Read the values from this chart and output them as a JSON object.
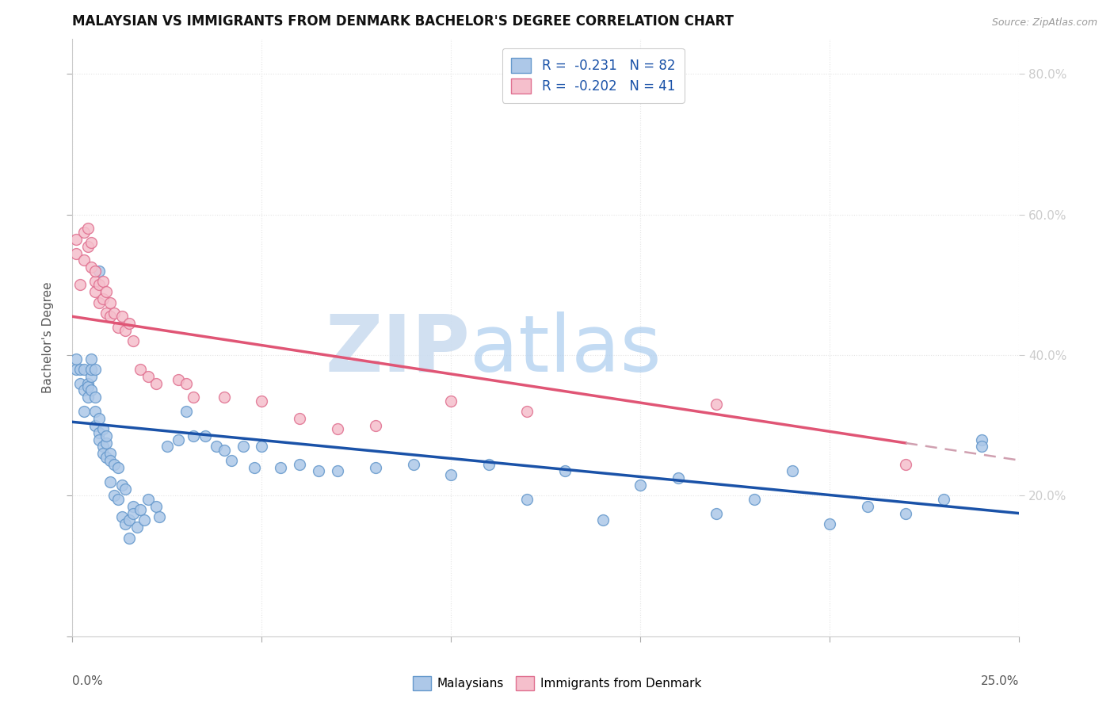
{
  "title": "MALAYSIAN VS IMMIGRANTS FROM DENMARK BACHELOR'S DEGREE CORRELATION CHART",
  "source": "Source: ZipAtlas.com",
  "ylabel": "Bachelor's Degree",
  "legend_blue_label": "Malaysians",
  "legend_pink_label": "Immigrants from Denmark",
  "legend_r_blue": "R =  -0.231",
  "legend_n_blue": "N = 82",
  "legend_r_pink": "R =  -0.202",
  "legend_n_pink": "N = 41",
  "blue_scatter_color": "#adc8e8",
  "blue_edge_color": "#6699cc",
  "pink_scatter_color": "#f5bfcc",
  "pink_edge_color": "#e07090",
  "blue_line_color": "#1a52a8",
  "pink_line_color": "#e05575",
  "pink_dash_color": "#d0a0b0",
  "background_color": "#ffffff",
  "grid_color": "#e5e5e5",
  "grid_style": "dotted",
  "right_tick_color": "#5599dd",
  "xlim": [
    0.0,
    0.25
  ],
  "ylim": [
    0.0,
    0.85
  ],
  "blue_x": [
    0.001,
    0.001,
    0.002,
    0.002,
    0.003,
    0.003,
    0.003,
    0.004,
    0.004,
    0.004,
    0.005,
    0.005,
    0.005,
    0.005,
    0.006,
    0.006,
    0.006,
    0.006,
    0.007,
    0.007,
    0.007,
    0.008,
    0.008,
    0.008,
    0.009,
    0.009,
    0.009,
    0.01,
    0.01,
    0.01,
    0.011,
    0.011,
    0.012,
    0.012,
    0.013,
    0.013,
    0.014,
    0.014,
    0.015,
    0.015,
    0.016,
    0.016,
    0.017,
    0.018,
    0.019,
    0.02,
    0.022,
    0.023,
    0.025,
    0.028,
    0.03,
    0.032,
    0.035,
    0.038,
    0.04,
    0.042,
    0.045,
    0.048,
    0.05,
    0.055,
    0.06,
    0.065,
    0.07,
    0.08,
    0.09,
    0.1,
    0.11,
    0.12,
    0.13,
    0.14,
    0.15,
    0.16,
    0.17,
    0.18,
    0.19,
    0.2,
    0.21,
    0.22,
    0.23,
    0.24,
    0.007,
    0.24
  ],
  "blue_y": [
    0.38,
    0.395,
    0.36,
    0.38,
    0.35,
    0.38,
    0.32,
    0.36,
    0.34,
    0.355,
    0.35,
    0.37,
    0.38,
    0.395,
    0.34,
    0.3,
    0.32,
    0.38,
    0.29,
    0.28,
    0.31,
    0.27,
    0.26,
    0.295,
    0.275,
    0.255,
    0.285,
    0.26,
    0.25,
    0.22,
    0.245,
    0.2,
    0.24,
    0.195,
    0.215,
    0.17,
    0.21,
    0.16,
    0.165,
    0.14,
    0.185,
    0.175,
    0.155,
    0.18,
    0.165,
    0.195,
    0.185,
    0.17,
    0.27,
    0.28,
    0.32,
    0.285,
    0.285,
    0.27,
    0.265,
    0.25,
    0.27,
    0.24,
    0.27,
    0.24,
    0.245,
    0.235,
    0.235,
    0.24,
    0.245,
    0.23,
    0.245,
    0.195,
    0.235,
    0.165,
    0.215,
    0.225,
    0.175,
    0.195,
    0.235,
    0.16,
    0.185,
    0.175,
    0.195,
    0.28,
    0.52,
    0.27
  ],
  "pink_x": [
    0.001,
    0.001,
    0.002,
    0.003,
    0.003,
    0.004,
    0.004,
    0.005,
    0.005,
    0.006,
    0.006,
    0.006,
    0.007,
    0.007,
    0.008,
    0.008,
    0.009,
    0.009,
    0.01,
    0.01,
    0.011,
    0.012,
    0.013,
    0.014,
    0.015,
    0.016,
    0.018,
    0.02,
    0.022,
    0.028,
    0.032,
    0.04,
    0.05,
    0.06,
    0.07,
    0.08,
    0.03,
    0.1,
    0.12,
    0.17,
    0.22
  ],
  "pink_y": [
    0.565,
    0.545,
    0.5,
    0.575,
    0.535,
    0.58,
    0.555,
    0.56,
    0.525,
    0.505,
    0.49,
    0.52,
    0.5,
    0.475,
    0.505,
    0.48,
    0.46,
    0.49,
    0.475,
    0.455,
    0.46,
    0.44,
    0.455,
    0.435,
    0.445,
    0.42,
    0.38,
    0.37,
    0.36,
    0.365,
    0.34,
    0.34,
    0.335,
    0.31,
    0.295,
    0.3,
    0.36,
    0.335,
    0.32,
    0.33,
    0.245
  ],
  "xtick_positions": [
    0.0,
    0.05,
    0.1,
    0.15,
    0.2,
    0.25
  ],
  "ytick_positions": [
    0.0,
    0.2,
    0.4,
    0.6,
    0.8
  ],
  "right_ytick_labels": [
    "20.0%",
    "40.0%",
    "60.0%",
    "80.0%"
  ],
  "right_ytick_values": [
    0.2,
    0.4,
    0.6,
    0.8
  ],
  "blue_trend_x0": 0.0,
  "blue_trend_y0": 0.305,
  "blue_trend_x1": 0.25,
  "blue_trend_y1": 0.175,
  "pink_trend_x0": 0.0,
  "pink_trend_y0": 0.455,
  "pink_trend_x1": 0.22,
  "pink_trend_y1": 0.275
}
